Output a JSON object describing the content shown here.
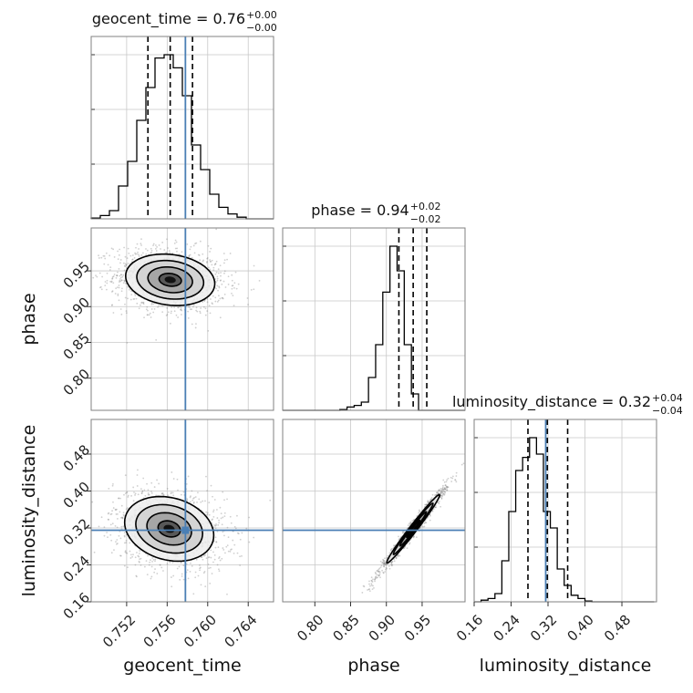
{
  "chart_data": {
    "type": "corner",
    "parameters": [
      "geocent_time",
      "phase",
      "luminosity_distance"
    ],
    "truth": {
      "geocent_time": 0.7578,
      "phase": null,
      "luminosity_distance": 0.315
    },
    "truth_color": "#4a7fb5",
    "titles": [
      {
        "param": "geocent_time",
        "text": "geocent_time = 0.76",
        "plus": "+0.00",
        "minus": "−0.00"
      },
      {
        "param": "phase",
        "text": "phase = 0.94",
        "plus": "+0.02",
        "minus": "−0.02"
      },
      {
        "param": "luminosity_distance",
        "text": "luminosity_distance = 0.32",
        "plus": "+0.04",
        "minus": "−0.04"
      }
    ],
    "axes": {
      "geocent_time": {
        "range": [
          0.7485,
          0.7665
        ],
        "ticks": [
          0.752,
          0.756,
          0.76,
          0.764
        ],
        "tick_labels": [
          "0.752",
          "0.756",
          "0.760",
          "0.764"
        ]
      },
      "phase": {
        "range": [
          0.755,
          1.01
        ],
        "ticks": [
          0.8,
          0.85,
          0.9,
          0.95
        ],
        "tick_labels": [
          "0.80",
          "0.85",
          "0.90",
          "0.95"
        ]
      },
      "luminosity_distance": {
        "range": [
          0.16,
          0.555
        ],
        "ticks": [
          0.16,
          0.24,
          0.32,
          0.4,
          0.48
        ],
        "tick_labels": [
          "0.16",
          "0.24",
          "0.32",
          "0.40",
          "0.48"
        ]
      }
    },
    "axis_labels": {
      "geocent_time": "geocent_time",
      "phase": "phase",
      "luminosity_distance": "luminosity_distance"
    },
    "histograms": {
      "geocent_time": {
        "bin_start": 0.7485,
        "bin_width": 0.0009,
        "counts": [
          0.005,
          0.02,
          0.05,
          0.2,
          0.35,
          0.6,
          0.8,
          0.98,
          1.0,
          0.92,
          0.75,
          0.45,
          0.3,
          0.15,
          0.07,
          0.03,
          0.01,
          0.0,
          0.0,
          0.0
        ],
        "quantiles": [
          0.7541,
          0.7563,
          0.7585
        ],
        "ymax": 1.0
      },
      "phase": {
        "bin_start": 0.755,
        "bin_width": 0.01,
        "counts": [
          0.0,
          0.0,
          0.0,
          0.0,
          0.0,
          0.0,
          0.0,
          0.0,
          0.005,
          0.02,
          0.03,
          0.05,
          0.2,
          0.4,
          0.72,
          1.0,
          0.85,
          0.4,
          0.1,
          0.0,
          0.0,
          0.0,
          0.0,
          0.0,
          0.0,
          0.0
        ],
        "quantiles": [
          0.9175,
          0.9375,
          0.9565
        ],
        "ymax": 1.0
      },
      "luminosity_distance": {
        "bin_start": 0.16,
        "bin_width": 0.015,
        "counts": [
          0.0,
          0.01,
          0.02,
          0.05,
          0.25,
          0.55,
          0.8,
          0.88,
          1.0,
          0.9,
          0.55,
          0.45,
          0.2,
          0.1,
          0.04,
          0.02,
          0.005,
          0.0,
          0.0,
          0.0,
          0.0,
          0.0,
          0.0,
          0.0,
          0.0,
          0.0
        ],
        "quantiles": [
          0.2765,
          0.3185,
          0.3625
        ],
        "ymax": 1.0
      }
    },
    "hist_ytick_fracs": [
      0.0,
      0.3333,
      0.6667,
      1.0
    ],
    "pairs": [
      {
        "x": "geocent_time",
        "y": "phase",
        "center": [
          0.7563,
          0.9375
        ],
        "sigma": [
          0.0022,
          0.018
        ],
        "corr": -0.15,
        "truth_x": 0.7578,
        "truth_y": null
      },
      {
        "x": "geocent_time",
        "y": "luminosity_distance",
        "center": [
          0.7562,
          0.318
        ],
        "sigma": [
          0.0022,
          0.035
        ],
        "corr": -0.2,
        "truth_x": 0.7578,
        "truth_y": 0.315
      },
      {
        "x": "phase",
        "y": "luminosity_distance",
        "center": [
          0.9375,
          0.318
        ],
        "sigma": [
          0.0185,
          0.037
        ],
        "corr": 0.985,
        "truth_x": null,
        "truth_y": 0.315
      }
    ],
    "contour_levels_sigma": [
      0.5,
      1.0,
      1.5,
      2.0
    ],
    "grid": true
  }
}
